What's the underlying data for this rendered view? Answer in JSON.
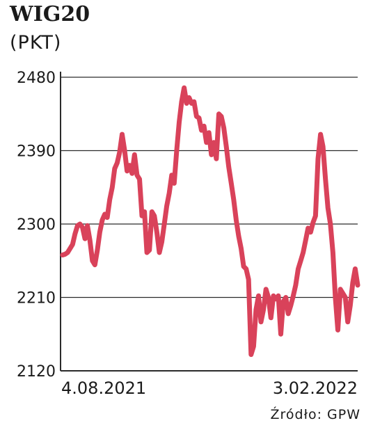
{
  "chart_data": {
    "type": "line",
    "title": "WIG20",
    "subtitle": "(PKT)",
    "source": "Źródło: GPW",
    "ylim": [
      2120,
      2480
    ],
    "yticks": [
      2120,
      2210,
      2300,
      2390,
      2480
    ],
    "grid": true,
    "x_tick_labels": [
      "4.08.2021",
      "3.02.2022"
    ],
    "series": [
      {
        "color": "#d9425a",
        "values": [
          2262,
          2263,
          2265,
          2270,
          2275,
          2288,
          2298,
          2300,
          2296,
          2282,
          2298,
          2280,
          2255,
          2250,
          2268,
          2290,
          2305,
          2312,
          2308,
          2330,
          2345,
          2368,
          2375,
          2388,
          2410,
          2390,
          2365,
          2372,
          2362,
          2385,
          2360,
          2355,
          2310,
          2315,
          2265,
          2268,
          2315,
          2310,
          2290,
          2265,
          2278,
          2300,
          2322,
          2338,
          2360,
          2350,
          2390,
          2425,
          2450,
          2467,
          2448,
          2455,
          2448,
          2450,
          2432,
          2430,
          2415,
          2420,
          2400,
          2412,
          2385,
          2400,
          2380,
          2435,
          2432,
          2418,
          2395,
          2370,
          2350,
          2330,
          2305,
          2285,
          2270,
          2248,
          2245,
          2232,
          2140,
          2150,
          2195,
          2212,
          2180,
          2195,
          2220,
          2210,
          2185,
          2212,
          2208,
          2212,
          2165,
          2205,
          2210,
          2190,
          2200,
          2212,
          2225,
          2245,
          2255,
          2265,
          2280,
          2295,
          2290,
          2302,
          2310,
          2380,
          2410,
          2395,
          2355,
          2320,
          2300,
          2265,
          2210,
          2170,
          2220,
          2215,
          2210,
          2180,
          2200,
          2228,
          2245,
          2225
        ]
      }
    ]
  }
}
